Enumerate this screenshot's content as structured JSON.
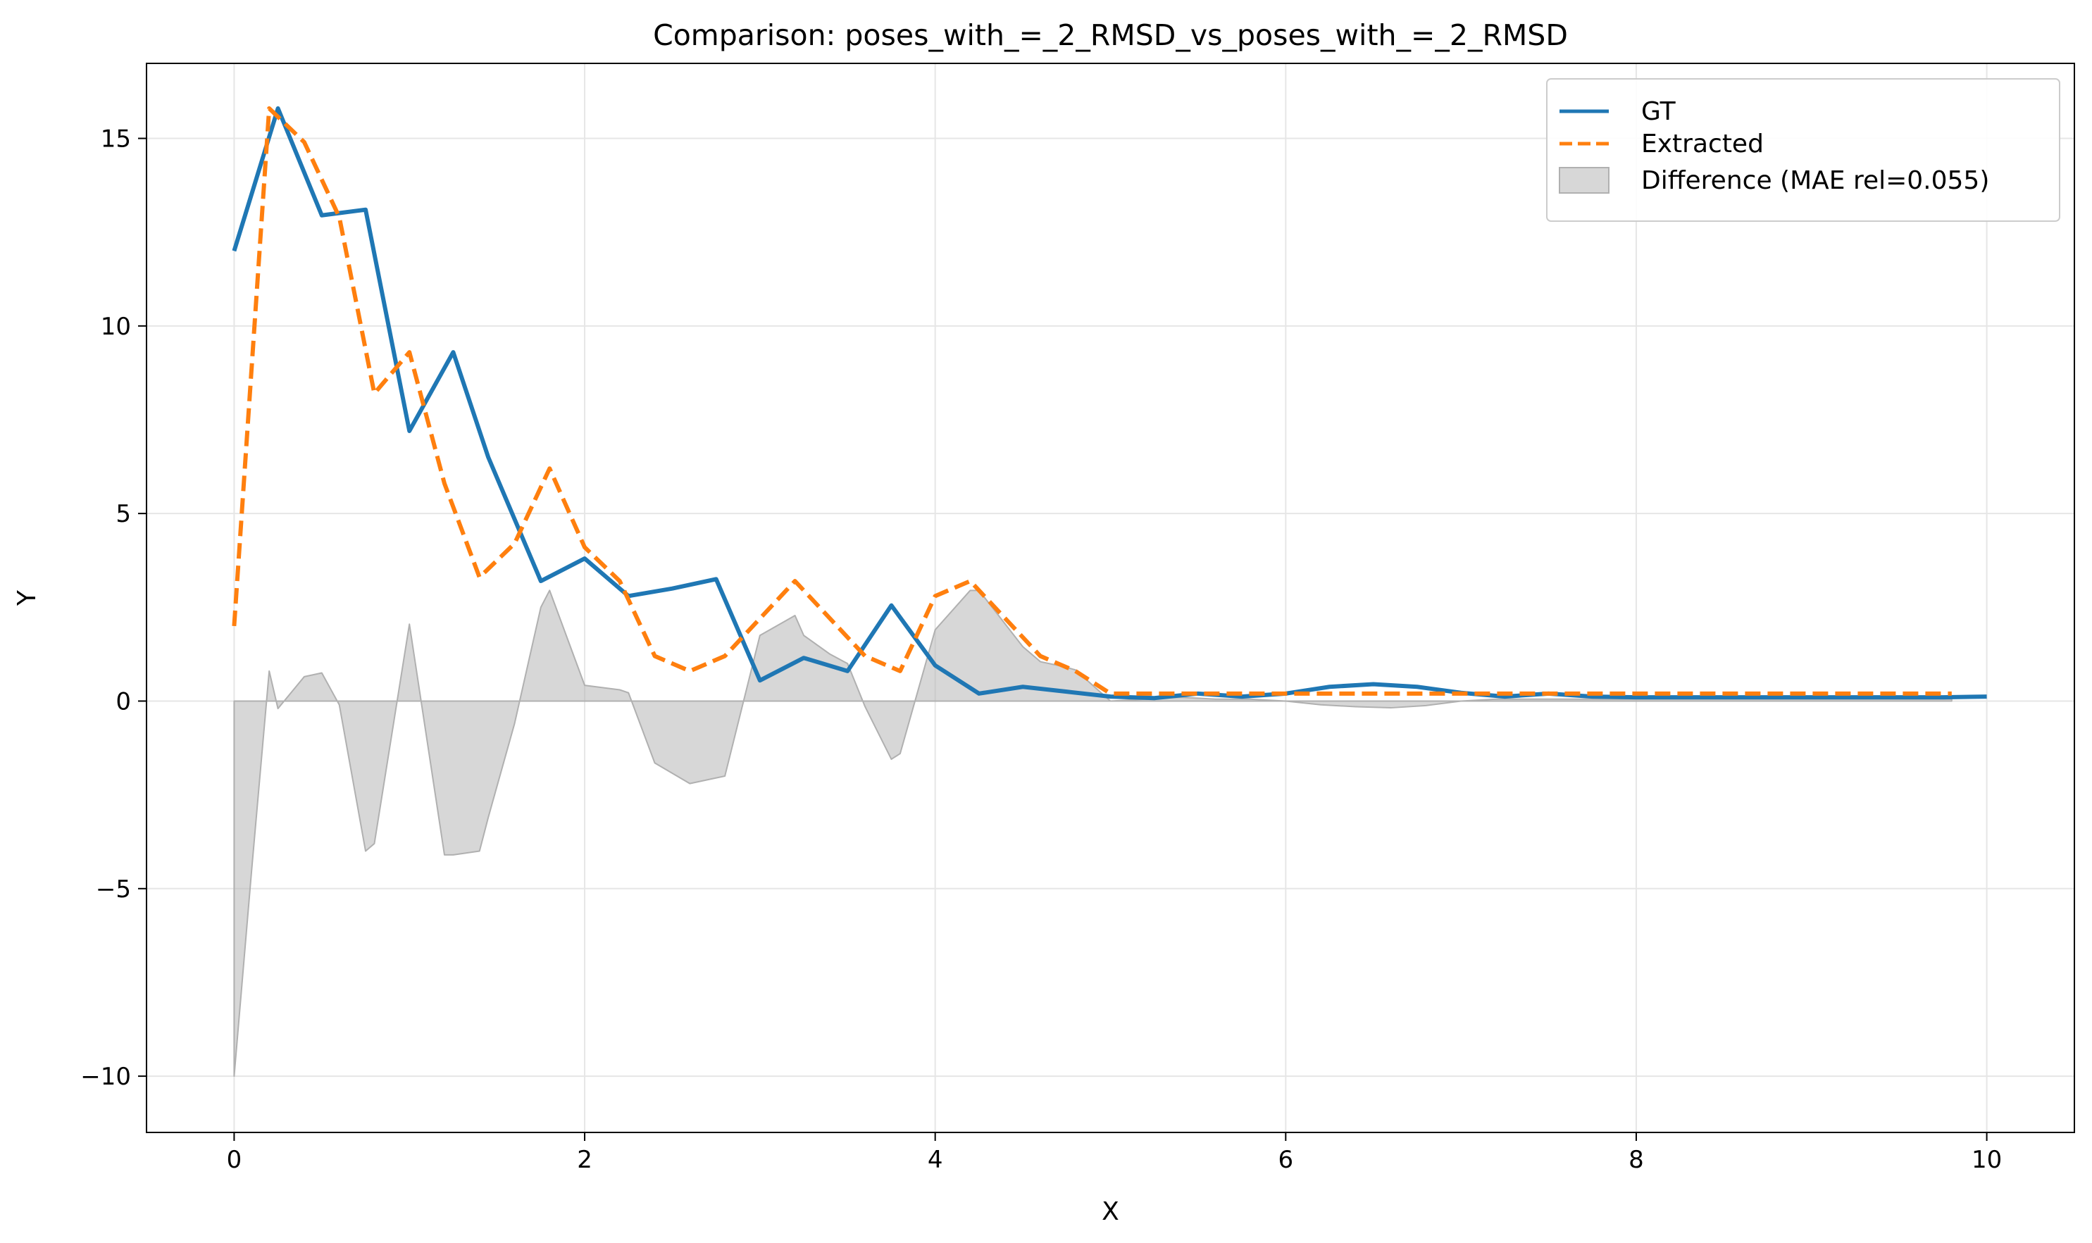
{
  "chart_data": {
    "type": "line",
    "title": "Comparison: poses_with_=_2_RMSD_vs_poses_with_=_2_RMSD",
    "xlabel": "X",
    "ylabel": "Y",
    "xlim": [
      -0.5,
      10.5
    ],
    "ylim": [
      -11.5,
      17.0
    ],
    "xticks": [
      0,
      2,
      4,
      6,
      8,
      10
    ],
    "yticks": [
      -10,
      -5,
      0,
      5,
      10,
      15
    ],
    "xtick_labels": [
      "0",
      "2",
      "4",
      "6",
      "8",
      "10"
    ],
    "ytick_labels": [
      "−10",
      "−5",
      "0",
      "5",
      "10",
      "15"
    ],
    "grid": true,
    "legend_position": "top-right",
    "series": [
      {
        "name": "GT",
        "style": "solid",
        "color": "#1f77b4",
        "x": [
          0,
          0.25,
          0.5,
          0.75,
          1.0,
          1.25,
          1.45,
          1.75,
          2.0,
          2.25,
          2.5,
          2.75,
          3.0,
          3.25,
          3.5,
          3.75,
          4.0,
          4.25,
          4.5,
          4.75,
          5.0,
          5.25,
          5.5,
          5.75,
          6.0,
          6.25,
          6.5,
          6.75,
          7.0,
          7.25,
          7.5,
          7.75,
          8.0,
          8.25,
          8.5,
          8.75,
          9.0,
          9.25,
          9.5,
          9.75,
          10.0
        ],
        "y": [
          12.0,
          15.8,
          12.95,
          13.1,
          7.2,
          9.3,
          6.5,
          3.2,
          3.8,
          2.8,
          3.0,
          3.25,
          0.55,
          1.15,
          0.8,
          2.55,
          0.95,
          0.2,
          0.38,
          0.25,
          0.12,
          0.08,
          0.2,
          0.12,
          0.2,
          0.38,
          0.45,
          0.38,
          0.22,
          0.12,
          0.2,
          0.12,
          0.1,
          0.1,
          0.1,
          0.1,
          0.1,
          0.1,
          0.1,
          0.1,
          0.12
        ]
      },
      {
        "name": "Extracted",
        "style": "dashed",
        "color": "#ff7f0e",
        "x": [
          0,
          0.2,
          0.4,
          0.6,
          0.8,
          1.0,
          1.2,
          1.4,
          1.6,
          1.8,
          2.0,
          2.2,
          2.4,
          2.6,
          2.8,
          3.0,
          3.2,
          3.4,
          3.6,
          3.8,
          4.0,
          4.2,
          4.4,
          4.6,
          4.8,
          5.0,
          5.2,
          5.4,
          5.6,
          5.8,
          6.0,
          6.2,
          6.4,
          6.6,
          6.8,
          7.0,
          7.2,
          7.4,
          7.6,
          7.8,
          8.0,
          8.2,
          8.4,
          8.6,
          8.8,
          9.0,
          9.2,
          9.4,
          9.6,
          9.8
        ],
        "y": [
          2.0,
          15.8,
          14.9,
          12.9,
          8.2,
          9.3,
          5.8,
          3.3,
          4.2,
          6.2,
          4.1,
          3.2,
          1.2,
          0.8,
          1.2,
          2.2,
          3.2,
          2.2,
          1.2,
          0.8,
          2.8,
          3.2,
          2.2,
          1.2,
          0.8,
          0.2,
          0.2,
          0.2,
          0.2,
          0.2,
          0.2,
          0.2,
          0.2,
          0.2,
          0.2,
          0.2,
          0.2,
          0.2,
          0.2,
          0.2,
          0.2,
          0.2,
          0.2,
          0.2,
          0.2,
          0.2,
          0.2,
          0.2,
          0.2,
          0.2
        ]
      }
    ],
    "difference": {
      "name": "Difference (MAE rel=0.055)",
      "color": "#b0b0b0",
      "x": [
        0,
        0.1,
        0.2,
        0.25,
        0.4,
        0.5,
        0.6,
        0.75,
        0.8,
        1.0,
        1.2,
        1.25,
        1.4,
        1.45,
        1.6,
        1.75,
        1.8,
        2.0,
        2.2,
        2.25,
        2.4,
        2.6,
        2.75,
        2.8,
        3.0,
        3.2,
        3.25,
        3.4,
        3.5,
        3.6,
        3.75,
        3.8,
        4.0,
        4.2,
        4.25,
        4.4,
        4.5,
        4.6,
        4.75,
        4.8,
        5.0,
        5.2,
        5.4,
        5.6,
        5.8,
        6.0,
        6.2,
        6.4,
        6.6,
        6.8,
        7.0,
        7.2,
        7.4,
        7.6,
        7.8,
        8.0,
        8.5,
        9.0,
        9.5,
        9.8
      ],
      "y": [
        -10.0,
        -4.5,
        0.8,
        -0.2,
        0.65,
        0.75,
        -0.1,
        -4.0,
        -3.8,
        2.05,
        -4.1,
        -4.1,
        -4.0,
        -3.1,
        -0.6,
        2.5,
        2.95,
        0.42,
        0.3,
        0.22,
        -1.65,
        -2.2,
        -2.05,
        -2.0,
        1.75,
        2.28,
        1.75,
        1.25,
        1.0,
        -0.15,
        -1.55,
        -1.4,
        1.9,
        2.95,
        2.95,
        2.05,
        1.45,
        1.05,
        0.9,
        0.83,
        0.0,
        0.05,
        0.1,
        0.05,
        0.05,
        0.0,
        -0.1,
        -0.15,
        -0.18,
        -0.12,
        0.0,
        0.05,
        0.05,
        0.05,
        0.05,
        0.05,
        0.05,
        0.05,
        0.05,
        0.05
      ]
    }
  }
}
